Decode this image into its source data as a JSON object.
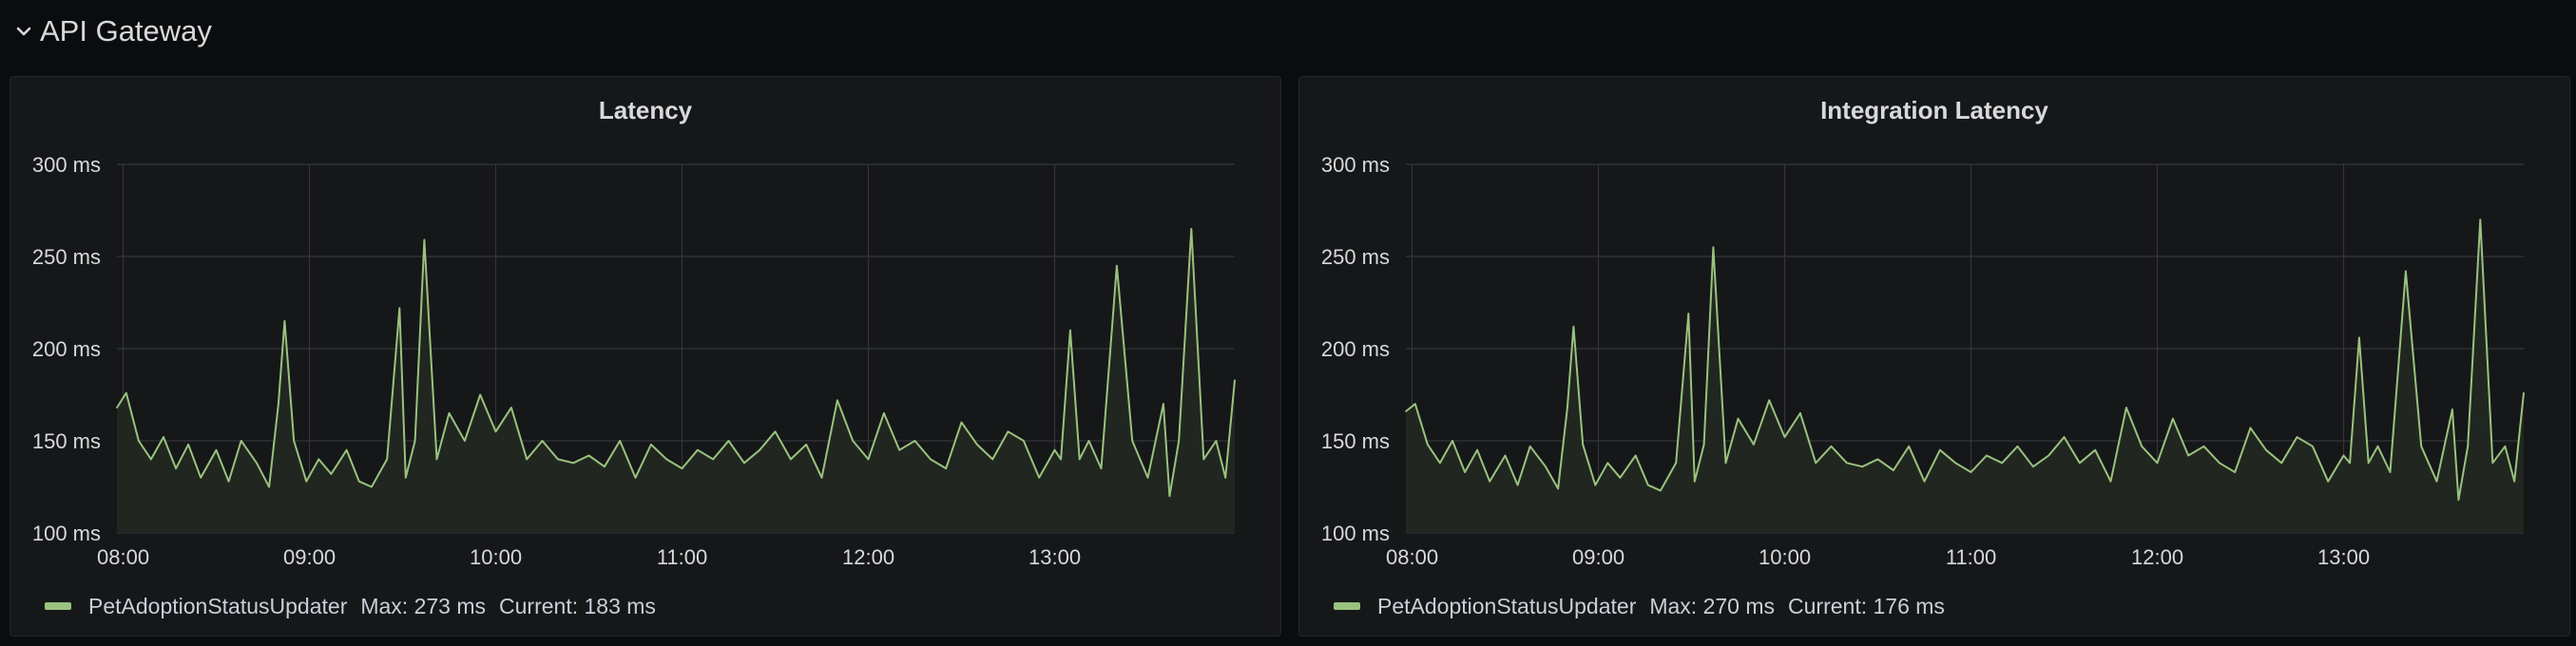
{
  "row": {
    "title": "API Gateway",
    "collapse_icon": "chevron-down-icon"
  },
  "colors": {
    "series": "#9ac27e",
    "fill": "#212720",
    "grid": "#34363b",
    "text": "#d8d9da",
    "panel_bg": "#161719",
    "page_bg": "#0b0c0e"
  },
  "panels": [
    {
      "title": "Latency",
      "legend": {
        "series_name": "PetAdoptionStatusUpdater",
        "max_label": "Max: 273 ms",
        "current_label": "Current: 183 ms"
      }
    },
    {
      "title": "Integration Latency",
      "legend": {
        "series_name": "PetAdoptionStatusUpdater",
        "max_label": "Max: 270 ms",
        "current_label": "Current: 176 ms"
      }
    }
  ],
  "chart_data": [
    {
      "type": "area",
      "title": "Latency",
      "xlabel": "",
      "ylabel": "",
      "x_ticks": [
        "08:00",
        "09:00",
        "10:00",
        "11:00",
        "12:00",
        "13:00"
      ],
      "y_ticks": [
        "100 ms",
        "150 ms",
        "200 ms",
        "250 ms",
        "300 ms"
      ],
      "ylim": [
        100,
        300
      ],
      "x_range": [
        "07:58",
        "13:58"
      ],
      "grid": true,
      "legend_position": "bottom-left",
      "series": [
        {
          "name": "PetAdoptionStatusUpdater",
          "max": 273,
          "current": 183,
          "x": [
            "07:58",
            "08:01",
            "08:05",
            "08:09",
            "08:13",
            "08:17",
            "08:21",
            "08:25",
            "08:30",
            "08:34",
            "08:38",
            "08:43",
            "08:47",
            "08:50",
            "08:52",
            "08:55",
            "08:59",
            "09:03",
            "09:07",
            "09:12",
            "09:16",
            "09:20",
            "09:25",
            "09:29",
            "09:31",
            "09:34",
            "09:37",
            "09:41",
            "09:45",
            "09:50",
            "09:55",
            "10:00",
            "10:05",
            "10:10",
            "10:15",
            "10:20",
            "10:25",
            "10:30",
            "10:35",
            "10:40",
            "10:45",
            "10:50",
            "10:55",
            "11:00",
            "11:05",
            "11:10",
            "11:15",
            "11:20",
            "11:25",
            "11:30",
            "11:35",
            "11:40",
            "11:45",
            "11:50",
            "11:55",
            "12:00",
            "12:05",
            "12:10",
            "12:15",
            "12:20",
            "12:25",
            "12:30",
            "12:35",
            "12:40",
            "12:45",
            "12:50",
            "12:55",
            "13:00",
            "13:02",
            "13:05",
            "13:08",
            "13:11",
            "13:15",
            "13:20",
            "13:25",
            "13:30",
            "13:35",
            "13:37",
            "13:40",
            "13:44",
            "13:48",
            "13:52",
            "13:55",
            "13:58"
          ],
          "values": [
            168,
            176,
            150,
            140,
            152,
            135,
            148,
            130,
            145,
            128,
            150,
            138,
            125,
            170,
            215,
            150,
            128,
            140,
            132,
            145,
            128,
            125,
            140,
            222,
            130,
            150,
            259,
            140,
            165,
            150,
            175,
            155,
            168,
            140,
            150,
            140,
            138,
            142,
            136,
            150,
            130,
            148,
            140,
            135,
            145,
            140,
            150,
            138,
            145,
            155,
            140,
            148,
            130,
            172,
            150,
            140,
            165,
            145,
            150,
            140,
            135,
            160,
            148,
            140,
            155,
            150,
            130,
            145,
            140,
            210,
            140,
            150,
            135,
            245,
            150,
            130,
            170,
            120,
            150,
            265,
            140,
            150,
            130,
            183
          ]
        }
      ]
    },
    {
      "type": "area",
      "title": "Integration Latency",
      "xlabel": "",
      "ylabel": "",
      "x_ticks": [
        "08:00",
        "09:00",
        "10:00",
        "11:00",
        "12:00",
        "13:00"
      ],
      "y_ticks": [
        "100 ms",
        "150 ms",
        "200 ms",
        "250 ms",
        "300 ms"
      ],
      "ylim": [
        100,
        300
      ],
      "x_range": [
        "07:58",
        "13:58"
      ],
      "grid": true,
      "legend_position": "bottom-left",
      "series": [
        {
          "name": "PetAdoptionStatusUpdater",
          "max": 270,
          "current": 176,
          "x": [
            "07:58",
            "08:01",
            "08:05",
            "08:09",
            "08:13",
            "08:17",
            "08:21",
            "08:25",
            "08:30",
            "08:34",
            "08:38",
            "08:43",
            "08:47",
            "08:50",
            "08:52",
            "08:55",
            "08:59",
            "09:03",
            "09:07",
            "09:12",
            "09:16",
            "09:20",
            "09:25",
            "09:29",
            "09:31",
            "09:34",
            "09:37",
            "09:41",
            "09:45",
            "09:50",
            "09:55",
            "10:00",
            "10:05",
            "10:10",
            "10:15",
            "10:20",
            "10:25",
            "10:30",
            "10:35",
            "10:40",
            "10:45",
            "10:50",
            "10:55",
            "11:00",
            "11:05",
            "11:10",
            "11:15",
            "11:20",
            "11:25",
            "11:30",
            "11:35",
            "11:40",
            "11:45",
            "11:50",
            "11:55",
            "12:00",
            "12:05",
            "12:10",
            "12:15",
            "12:20",
            "12:25",
            "12:30",
            "12:35",
            "12:40",
            "12:45",
            "12:50",
            "12:55",
            "13:00",
            "13:02",
            "13:05",
            "13:08",
            "13:11",
            "13:15",
            "13:20",
            "13:25",
            "13:30",
            "13:35",
            "13:37",
            "13:40",
            "13:44",
            "13:48",
            "13:52",
            "13:55",
            "13:58"
          ],
          "values": [
            166,
            170,
            148,
            138,
            150,
            133,
            145,
            128,
            142,
            126,
            147,
            136,
            124,
            168,
            212,
            148,
            126,
            138,
            130,
            142,
            126,
            123,
            138,
            219,
            128,
            148,
            255,
            138,
            162,
            148,
            172,
            152,
            165,
            138,
            147,
            138,
            136,
            140,
            134,
            147,
            128,
            145,
            138,
            133,
            142,
            138,
            147,
            136,
            142,
            152,
            138,
            145,
            128,
            168,
            147,
            138,
            162,
            142,
            147,
            138,
            133,
            157,
            145,
            138,
            152,
            147,
            128,
            142,
            138,
            206,
            138,
            147,
            133,
            242,
            147,
            128,
            167,
            118,
            147,
            270,
            138,
            147,
            128,
            176
          ]
        }
      ]
    }
  ]
}
